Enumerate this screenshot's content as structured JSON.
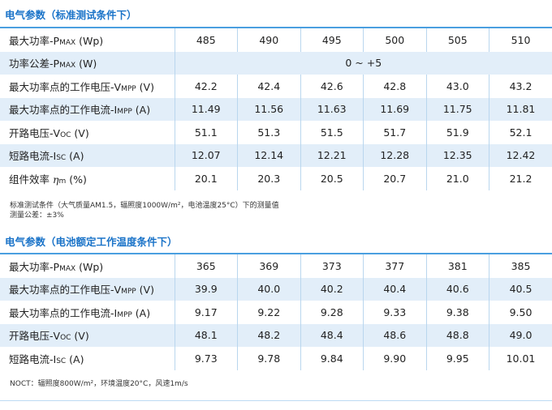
{
  "stc": {
    "title": "电气参数（标准测试条件下）",
    "rows": [
      {
        "label": "最大功率-P",
        "sub": "MAX",
        "unit": " (Wp)",
        "values": [
          "485",
          "490",
          "495",
          "500",
          "505",
          "510"
        ]
      },
      {
        "label": "功率公差-P",
        "sub": "MAX",
        "unit": " (W)",
        "span_value": "0 ~ +5"
      },
      {
        "label": "最大功率点的工作电压-V",
        "sub": "MPP",
        "unit": " (V)",
        "values": [
          "42.2",
          "42.4",
          "42.6",
          "42.8",
          "43.0",
          "43.2"
        ]
      },
      {
        "label": "最大功率点的工作电流-I",
        "sub": "MPP",
        "unit": " (A)",
        "values": [
          "11.49",
          "11.56",
          "11.63",
          "11.69",
          "11.75",
          "11.81"
        ]
      },
      {
        "label": "开路电压-V",
        "sub": "OC",
        "unit": " (V)",
        "values": [
          "51.1",
          "51.3",
          "51.5",
          "51.7",
          "51.9",
          "52.1"
        ]
      },
      {
        "label": "短路电流-I",
        "sub": "SC",
        "unit": " (A)",
        "values": [
          "12.07",
          "12.14",
          "12.21",
          "12.28",
          "12.35",
          "12.42"
        ]
      },
      {
        "label": "组件效率 ",
        "sub": "m",
        "unit": " (%)",
        "symbol": "η",
        "values": [
          "20.1",
          "20.3",
          "20.5",
          "20.7",
          "21.0",
          "21.2"
        ]
      }
    ],
    "note_line1": "标准测试条件（大气质量AM1.5，辐照度1000W/m²，电池温度25°C）下的测量值",
    "note_line2": "测量公差：±3%"
  },
  "noct": {
    "title": "电气参数（电池额定工作温度条件下）",
    "rows": [
      {
        "label": "最大功率-P",
        "sub": "MAX",
        "unit": " (Wp)",
        "values": [
          "365",
          "369",
          "373",
          "377",
          "381",
          "385"
        ]
      },
      {
        "label": "最大功率点的工作电压-V",
        "sub": "MPP",
        "unit": " (V)",
        "values": [
          "39.9",
          "40.0",
          "40.2",
          "40.4",
          "40.6",
          "40.5"
        ]
      },
      {
        "label": "最大功率点的工作电流-I",
        "sub": "MPP",
        "unit": " (A)",
        "values": [
          "9.17",
          "9.22",
          "9.28",
          "9.33",
          "9.38",
          "9.50"
        ]
      },
      {
        "label": "开路电压-V",
        "sub": "OC",
        "unit": " (V)",
        "values": [
          "48.1",
          "48.2",
          "48.4",
          "48.6",
          "48.8",
          "49.0"
        ]
      },
      {
        "label": "短路电流-I",
        "sub": "SC",
        "unit": " (A)",
        "values": [
          "9.73",
          "9.78",
          "9.84",
          "9.90",
          "9.95",
          "10.01"
        ]
      }
    ],
    "note_line1": "NOCT：辐照度800W/m²，环境温度20°C，风速1m/s"
  },
  "colors": {
    "accent": "#1a73c8",
    "row_shade": "#e2eef9",
    "divider": "#b9d6ee"
  }
}
